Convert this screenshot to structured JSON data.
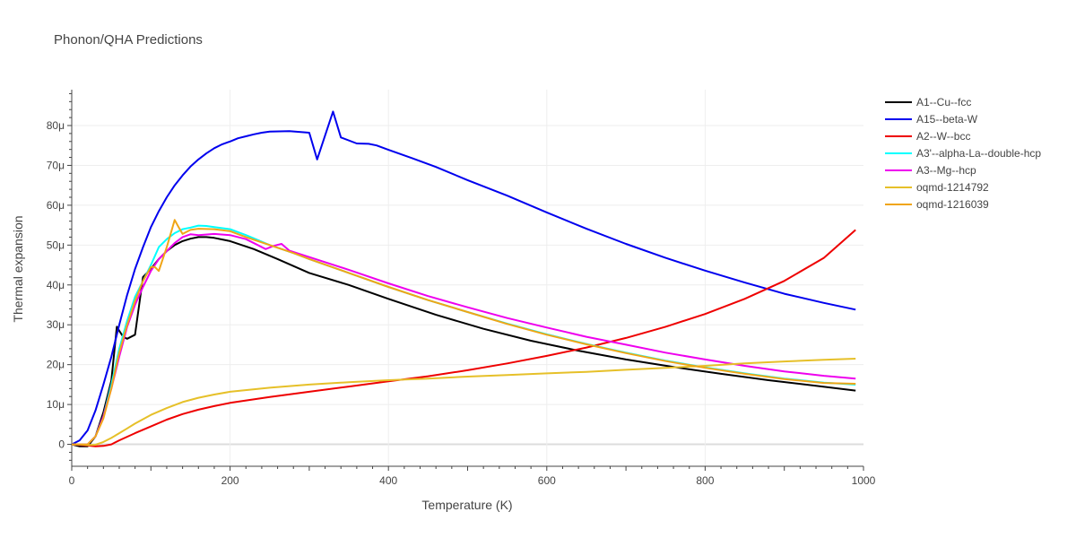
{
  "chart_data": {
    "type": "line",
    "title": "Phonon/QHA Predictions",
    "xlabel": "Temperature (K)",
    "ylabel": "Thermal expansion",
    "xlim": [
      0,
      1000
    ],
    "ylim": [
      -5.5e-06,
      8.9e-05
    ],
    "x_ticks": [
      0,
      200,
      400,
      600,
      800,
      1000
    ],
    "x_tick_labels": [
      "0",
      "200",
      "400",
      "600",
      "800",
      "1000"
    ],
    "y_ticks": [
      0,
      1e-05,
      2e-05,
      3e-05,
      4e-05,
      5e-05,
      6e-05,
      7e-05,
      8e-05
    ],
    "y_tick_labels": [
      "0",
      "10μ",
      "20μ",
      "30μ",
      "40μ",
      "50μ",
      "60μ",
      "70μ",
      "80μ"
    ],
    "grid": true,
    "legend_position": "top-right",
    "series": [
      {
        "name": "A1--Cu--fcc",
        "color": "#000000",
        "x": [
          0,
          10,
          20,
          30,
          40,
          50,
          57,
          60,
          65,
          70,
          80,
          90,
          100,
          110,
          120,
          130,
          140,
          150,
          160,
          170,
          180,
          200,
          230,
          260,
          300,
          350,
          400,
          460,
          520,
          580,
          640,
          700,
          760,
          820,
          880,
          940,
          990
        ],
        "y": [
          0,
          -5e-07,
          -5e-07,
          2e-06,
          8e-06,
          1.6e-05,
          2.95e-05,
          2.85e-05,
          2.7e-05,
          2.65e-05,
          2.75e-05,
          4.2e-05,
          4.4e-05,
          4.65e-05,
          4.85e-05,
          5e-05,
          5.1e-05,
          5.16e-05,
          5.2e-05,
          5.2e-05,
          5.18e-05,
          5.1e-05,
          4.9e-05,
          4.65e-05,
          4.3e-05,
          4e-05,
          3.65e-05,
          3.25e-05,
          2.9e-05,
          2.6e-05,
          2.35e-05,
          2.13e-05,
          1.94e-05,
          1.77e-05,
          1.61e-05,
          1.47e-05,
          1.35e-05
        ]
      },
      {
        "name": "A15--beta-W",
        "color": "#0000ee",
        "x": [
          0,
          10,
          20,
          30,
          40,
          50,
          60,
          70,
          80,
          90,
          100,
          110,
          120,
          130,
          140,
          150,
          160,
          170,
          180,
          190,
          200,
          210,
          220,
          230,
          240,
          250,
          275,
          300,
          310,
          330,
          340,
          360,
          375,
          385,
          400,
          430,
          460,
          500,
          550,
          600,
          650,
          700,
          750,
          800,
          850,
          900,
          950,
          990
        ],
        "y": [
          0,
          1e-06,
          3.5e-06,
          8.5e-06,
          1.5e-05,
          2.2e-05,
          3e-05,
          3.75e-05,
          4.4e-05,
          4.95e-05,
          5.45e-05,
          5.85e-05,
          6.2e-05,
          6.5e-05,
          6.75e-05,
          6.97e-05,
          7.15e-05,
          7.3e-05,
          7.43e-05,
          7.53e-05,
          7.6e-05,
          7.68e-05,
          7.73e-05,
          7.78e-05,
          7.82e-05,
          7.85e-05,
          7.86e-05,
          7.82e-05,
          7.15e-05,
          8.35e-05,
          7.7e-05,
          7.55e-05,
          7.54e-05,
          7.5e-05,
          7.39e-05,
          7.18e-05,
          6.96e-05,
          6.63e-05,
          6.24e-05,
          5.82e-05,
          5.41e-05,
          5.03e-05,
          4.68e-05,
          4.36e-05,
          4.06e-05,
          3.78e-05,
          3.55e-05,
          3.38e-05
        ]
      },
      {
        "name": "A2--W--bcc",
        "color": "#ee0000",
        "x": [
          0,
          20,
          30,
          40,
          50,
          60,
          80,
          100,
          120,
          140,
          160,
          180,
          200,
          250,
          300,
          350,
          400,
          450,
          500,
          550,
          600,
          650,
          700,
          750,
          800,
          850,
          900,
          950,
          990
        ],
        "y": [
          0,
          -3e-07,
          -5e-07,
          -4e-07,
          0,
          1e-06,
          2.8e-06,
          4.5e-06,
          6.2e-06,
          7.6e-06,
          8.7e-06,
          9.6e-06,
          1.04e-05,
          1.19e-05,
          1.32e-05,
          1.45e-05,
          1.58e-05,
          1.71e-05,
          1.86e-05,
          2.03e-05,
          2.22e-05,
          2.43e-05,
          2.67e-05,
          2.95e-05,
          3.27e-05,
          3.65e-05,
          4.1e-05,
          4.68e-05,
          5.38e-05
        ]
      },
      {
        "name": "A3'--alpha-La--double-hcp",
        "color": "#00ffff",
        "x": [
          0,
          20,
          30,
          40,
          50,
          60,
          70,
          80,
          90,
          100,
          110,
          120,
          130,
          140,
          150,
          160,
          170,
          180,
          200,
          220,
          250,
          280,
          300,
          350,
          400,
          450,
          500,
          550,
          600,
          650,
          700,
          750,
          800,
          850,
          900,
          950,
          990
        ],
        "y": [
          0,
          0,
          2e-06,
          7e-06,
          1.5e-05,
          2.4e-05,
          3.1e-05,
          3.7e-05,
          4.1e-05,
          4.5e-05,
          4.95e-05,
          5.15e-05,
          5.3e-05,
          5.4e-05,
          5.44e-05,
          5.49e-05,
          5.48e-05,
          5.45e-05,
          5.4e-05,
          5.25e-05,
          5e-05,
          4.8e-05,
          4.65e-05,
          4.3e-05,
          3.95e-05,
          3.62e-05,
          3.32e-05,
          3.03e-05,
          2.76e-05,
          2.52e-05,
          2.3e-05,
          2.1e-05,
          1.93e-05,
          1.78e-05,
          1.65e-05,
          1.55e-05,
          1.5e-05
        ]
      },
      {
        "name": "A3--Mg--hcp",
        "color": "#ee00ee",
        "x": [
          0,
          20,
          30,
          40,
          50,
          60,
          70,
          80,
          90,
          100,
          110,
          120,
          130,
          140,
          150,
          160,
          180,
          200,
          220,
          235,
          245,
          255,
          265,
          275,
          300,
          350,
          400,
          450,
          500,
          550,
          600,
          650,
          700,
          750,
          800,
          850,
          900,
          950,
          990
        ],
        "y": [
          0,
          0,
          2e-06,
          7e-06,
          1.4e-05,
          2.2e-05,
          2.95e-05,
          3.5e-05,
          3.95e-05,
          4.35e-05,
          4.65e-05,
          4.85e-05,
          5.05e-05,
          5.2e-05,
          5.27e-05,
          5.25e-05,
          5.28e-05,
          5.25e-05,
          5.15e-05,
          5e-05,
          4.9e-05,
          4.98e-05,
          5.03e-05,
          4.86e-05,
          4.7e-05,
          4.38e-05,
          4.04e-05,
          3.72e-05,
          3.44e-05,
          3.17e-05,
          2.93e-05,
          2.7e-05,
          2.5e-05,
          2.3e-05,
          2.13e-05,
          1.97e-05,
          1.83e-05,
          1.72e-05,
          1.65e-05
        ]
      },
      {
        "name": "oqmd-1214792",
        "color": "#e6c029",
        "x": [
          0,
          10,
          20,
          30,
          40,
          50,
          60,
          70,
          80,
          100,
          120,
          140,
          160,
          180,
          200,
          250,
          300,
          350,
          400,
          450,
          500,
          550,
          600,
          650,
          700,
          750,
          800,
          850,
          900,
          950,
          990
        ],
        "y": [
          0,
          0,
          -2e-07,
          -1e-07,
          6e-07,
          1.6e-06,
          2.8e-06,
          4e-06,
          5.2e-06,
          7.4e-06,
          9.1e-06,
          1.06e-05,
          1.17e-05,
          1.25e-05,
          1.32e-05,
          1.42e-05,
          1.5e-05,
          1.56e-05,
          1.61e-05,
          1.65e-05,
          1.7e-05,
          1.74e-05,
          1.78e-05,
          1.82e-05,
          1.87e-05,
          1.92e-05,
          1.97e-05,
          2.03e-05,
          2.08e-05,
          2.12e-05,
          2.15e-05
        ]
      },
      {
        "name": "oqmd-1216039",
        "color": "#f0a516",
        "x": [
          0,
          20,
          30,
          40,
          50,
          60,
          70,
          80,
          90,
          100,
          105,
          110,
          120,
          130,
          135,
          140,
          150,
          160,
          180,
          200,
          220,
          250,
          280,
          300,
          350,
          400,
          450,
          500,
          550,
          600,
          650,
          700,
          750,
          800,
          850,
          900,
          950,
          990
        ],
        "y": [
          0,
          0,
          2e-06,
          6.5e-06,
          1.4e-05,
          2.3e-05,
          3e-05,
          3.6e-05,
          4.1e-05,
          4.45e-05,
          4.45e-05,
          4.35e-05,
          4.95e-05,
          5.63e-05,
          5.45e-05,
          5.28e-05,
          5.38e-05,
          5.41e-05,
          5.4e-05,
          5.35e-05,
          5.2e-05,
          5e-05,
          4.8e-05,
          4.65e-05,
          4.3e-05,
          3.95e-05,
          3.62e-05,
          3.32e-05,
          3.02e-05,
          2.75e-05,
          2.51e-05,
          2.29e-05,
          2.09e-05,
          1.92e-05,
          1.77e-05,
          1.64e-05,
          1.54e-05,
          1.52e-05
        ]
      }
    ]
  }
}
